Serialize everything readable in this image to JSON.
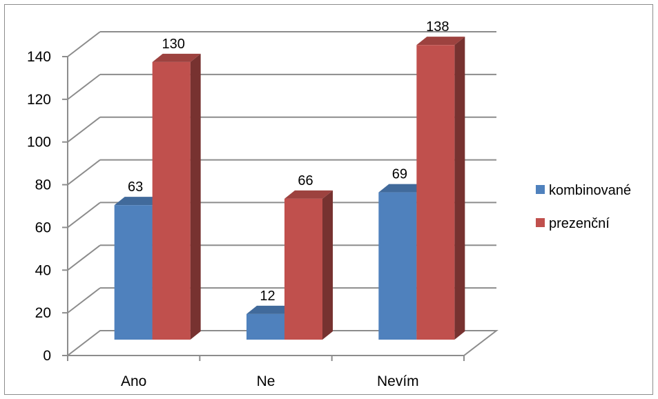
{
  "chart_data": {
    "type": "bar",
    "categories": [
      "Ano",
      "Ne",
      "Nevím"
    ],
    "series": [
      {
        "name": "kombinované",
        "values": [
          63,
          12,
          69
        ],
        "color": "#4f81bd"
      },
      {
        "name": "prezenční",
        "values": [
          130,
          66,
          138
        ],
        "color": "#c0504d"
      }
    ],
    "ylim": [
      0,
      140
    ],
    "y_ticks": [
      0,
      20,
      40,
      60,
      80,
      100,
      120,
      140
    ],
    "grid": true,
    "legend_position": "right",
    "style": "3d-clustered-column"
  }
}
